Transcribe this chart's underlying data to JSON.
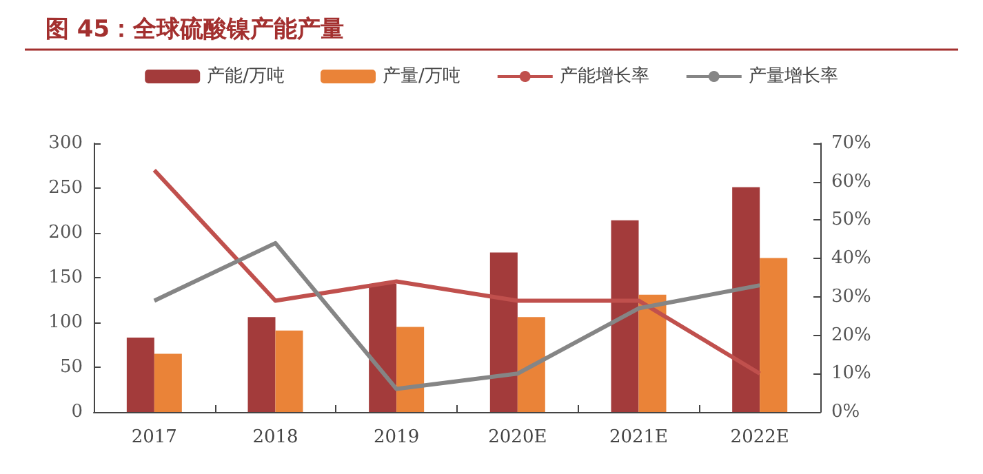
{
  "chart_data": {
    "type": "bar",
    "title": "图 45：全球硫酸镍产能产量",
    "categories": [
      "2017",
      "2018",
      "2019",
      "2020E",
      "2021E",
      "2022E"
    ],
    "series": [
      {
        "name": "产能/万吨",
        "color": "#a33b3b",
        "values": [
          83,
          106,
          143,
          178,
          214,
          251
        ]
      },
      {
        "name": "产量/万吨",
        "color": "#ea8338",
        "values": [
          65,
          91,
          95,
          106,
          131,
          172
        ]
      },
      {
        "name": "产能增长率",
        "type": "line",
        "axis": "y2",
        "color": "#c0504d",
        "values": [
          63,
          29,
          34,
          29,
          29,
          10
        ]
      },
      {
        "name": "产量增长率",
        "type": "line",
        "axis": "y2",
        "color": "#858585",
        "values": [
          29,
          44,
          6,
          10,
          27,
          33
        ]
      }
    ],
    "ylim": [
      0,
      300
    ],
    "yticks": [
      0,
      50,
      100,
      150,
      200,
      250,
      300
    ],
    "y2lim": [
      0,
      70
    ],
    "y2ticks": [
      {
        "value": 0,
        "label": "0%"
      },
      {
        "value": 10,
        "label": "10%"
      },
      {
        "value": 20,
        "label": "20%"
      },
      {
        "value": 30,
        "label": "30%"
      },
      {
        "value": 40,
        "label": "40%"
      },
      {
        "value": 50,
        "label": "50%"
      },
      {
        "value": 60,
        "label": "60%"
      },
      {
        "value": 70,
        "label": "70%"
      }
    ],
    "grid": false,
    "legend": "top",
    "marker": "none"
  }
}
